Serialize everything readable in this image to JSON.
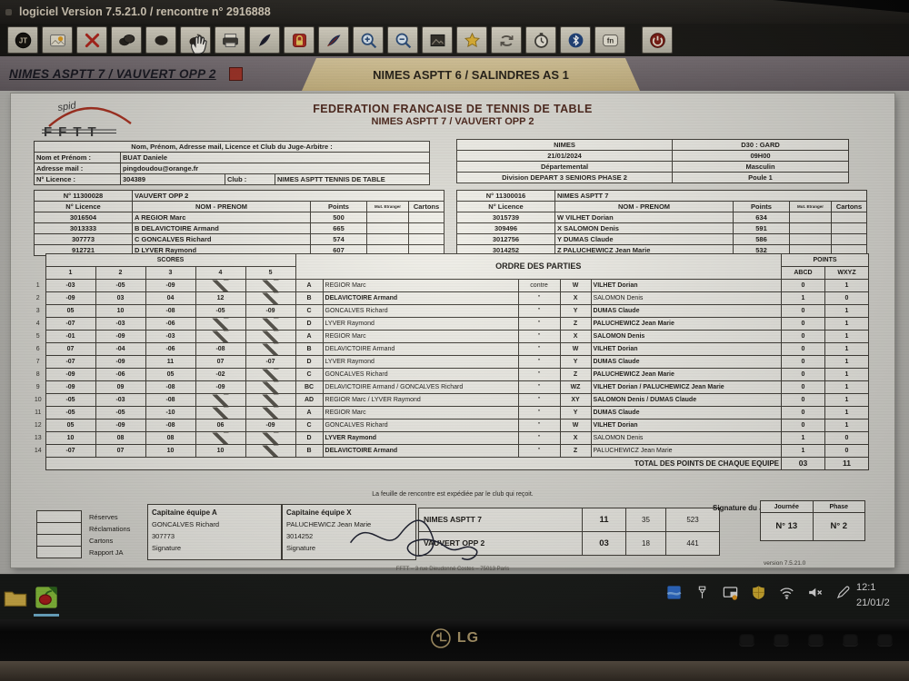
{
  "window": {
    "title": "logiciel Version 7.5.21.0  /  rencontre n° 2916888"
  },
  "toolbar": {
    "icons": [
      {
        "name": "app-logo-icon",
        "sym": "applogo"
      },
      {
        "name": "card-icon",
        "sym": "card"
      },
      {
        "name": "delete-icon",
        "sym": "xmark"
      },
      {
        "name": "double-ball-icon",
        "sym": "balls"
      },
      {
        "name": "ball-icon",
        "sym": "ball"
      },
      {
        "name": "sync-ball-icon",
        "sym": "sync"
      },
      {
        "name": "print-icon",
        "sym": "printer"
      },
      {
        "name": "black-feather-icon",
        "sym": "feather"
      },
      {
        "name": "lock-icon",
        "sym": "lock"
      },
      {
        "name": "blue-feather-icon",
        "sym": "feather2"
      },
      {
        "name": "zoom-in-icon",
        "sym": "zoomin"
      },
      {
        "name": "zoom-out-icon",
        "sym": "zoomout"
      },
      {
        "name": "image-icon",
        "sym": "image"
      },
      {
        "name": "star-icon",
        "sym": "star"
      },
      {
        "name": "refresh-icon",
        "sym": "refresh"
      },
      {
        "name": "timer-icon",
        "sym": "clock"
      },
      {
        "name": "bluetooth-icon",
        "sym": "bluetooth"
      },
      {
        "name": "fn-icon",
        "sym": "fn"
      },
      {
        "name": "power-icon",
        "sym": "power",
        "gap": true
      }
    ]
  },
  "tabs": [
    {
      "label": "NIMES ASPTT 7 / VAUVERT OPP 2",
      "active": true
    },
    {
      "label": "NIMES ASPTT 6 / SALINDRES AS 1",
      "active": false
    }
  ],
  "sheet": {
    "logo": {
      "spid": "spid",
      "fftt": "FFTT"
    },
    "title1": "FEDERATION FRANCAISE DE TENNIS DE TABLE",
    "title2": "NIMES ASPTT 7  /  VAUVERT OPP 2",
    "judge": {
      "header": "Nom, Prénom, Adresse mail, Licence et Club du Juge-Arbitre :",
      "name_label": "Nom et Prénom :",
      "name": "BUAT  Daniele",
      "mail_label": "Adresse mail :",
      "mail": "pingdoudou@orange.fr",
      "licence_label": "N° Licence :",
      "licence": "304389",
      "club_label": "Club :",
      "club": "NIMES ASPTT TENNIS DE TABLE"
    },
    "info": {
      "rows": [
        [
          "NIMES",
          "D30 : GARD"
        ],
        [
          "21/01/2024",
          "09H00"
        ],
        [
          "Départemental",
          "Masculin"
        ],
        [
          "Division  DEPART 3 SENIORS PHASE 2",
          "Poule 1"
        ]
      ]
    },
    "team_cols": {
      "licence": "N° Licence",
      "name": "NOM - PRENOM",
      "points": "Points",
      "mut": "Mut. Etranger",
      "cartons": "Cartons"
    },
    "teams": [
      {
        "club_no": "N° 11300028",
        "club": "VAUVERT OPP 2",
        "players": [
          {
            "lic": "3016504",
            "tag": "A",
            "name": "REGIOR Marc",
            "pts": "500"
          },
          {
            "lic": "3013333",
            "tag": "B",
            "name": "DELAVICTOIRE Armand",
            "pts": "665"
          },
          {
            "lic": "307773",
            "tag": "C",
            "name": "GONCALVES Richard",
            "pts": "574"
          },
          {
            "lic": "912721",
            "tag": "D",
            "name": "LYVER Raymond",
            "pts": "607"
          }
        ]
      },
      {
        "club_no": "N° 11300016",
        "club": "NIMES ASPTT 7",
        "players": [
          {
            "lic": "3015739",
            "tag": "W",
            "name": "VILHET Dorian",
            "pts": "634"
          },
          {
            "lic": "309496",
            "tag": "X",
            "name": "SALOMON Denis",
            "pts": "591"
          },
          {
            "lic": "3012756",
            "tag": "Y",
            "name": "DUMAS Claude",
            "pts": "586"
          },
          {
            "lic": "3014252",
            "tag": "Z",
            "name": "PALUCHEWICZ Jean Marie",
            "pts": "532"
          }
        ]
      }
    ],
    "match": {
      "scores_header": "SCORES",
      "score_cols": [
        "1",
        "2",
        "3",
        "4",
        "5"
      ],
      "order_header": "ORDRE DES PARTIES",
      "points_header": "POINTS",
      "points_cols": [
        "ABCD",
        "WXYZ"
      ],
      "contre_label": "contre",
      "ditto": "\"",
      "rows": [
        {
          "n": "1",
          "s": [
            "-03",
            "-05",
            "-09",
            "",
            ""
          ],
          "la": "A",
          "pa": "REGIOR Marc",
          "lx": "W",
          "px": "VILHET Dorian",
          "pta": "0",
          "ptx": "1",
          "w": "x"
        },
        {
          "n": "2",
          "s": [
            "-09",
            "03",
            "04",
            "12",
            ""
          ],
          "la": "B",
          "pa": "DELAVICTOIRE Armand",
          "lx": "X",
          "px": "SALOMON Denis",
          "pta": "1",
          "ptx": "0",
          "w": "a"
        },
        {
          "n": "3",
          "s": [
            "05",
            "10",
            "-08",
            "-05",
            "-09"
          ],
          "la": "C",
          "pa": "GONCALVES Richard",
          "lx": "Y",
          "px": "DUMAS Claude",
          "pta": "0",
          "ptx": "1",
          "w": "x"
        },
        {
          "n": "4",
          "s": [
            "-07",
            "-03",
            "-06",
            "",
            ""
          ],
          "la": "D",
          "pa": "LYVER Raymond",
          "lx": "Z",
          "px": "PALUCHEWICZ Jean Marie",
          "pta": "0",
          "ptx": "1",
          "w": "x"
        },
        {
          "n": "5",
          "s": [
            "-01",
            "-09",
            "-03",
            "",
            ""
          ],
          "la": "A",
          "pa": "REGIOR Marc",
          "lx": "X",
          "px": "SALOMON Denis",
          "pta": "0",
          "ptx": "1",
          "w": "x"
        },
        {
          "n": "6",
          "s": [
            "07",
            "-04",
            "-06",
            "-08",
            ""
          ],
          "la": "B",
          "pa": "DELAVICTOIRE Armand",
          "lx": "W",
          "px": "VILHET Dorian",
          "pta": "0",
          "ptx": "1",
          "w": "x"
        },
        {
          "n": "7",
          "s": [
            "-07",
            "-09",
            "11",
            "07",
            "-07"
          ],
          "la": "D",
          "pa": "LYVER Raymond",
          "lx": "Y",
          "px": "DUMAS Claude",
          "pta": "0",
          "ptx": "1",
          "w": "x"
        },
        {
          "n": "8",
          "s": [
            "-09",
            "-06",
            "05",
            "-02",
            ""
          ],
          "la": "C",
          "pa": "GONCALVES Richard",
          "lx": "Z",
          "px": "PALUCHEWICZ Jean Marie",
          "pta": "0",
          "ptx": "1",
          "w": "x"
        },
        {
          "n": "9",
          "s": [
            "-09",
            "09",
            "-08",
            "-09",
            ""
          ],
          "la": "BC",
          "pa": "DELAVICTOIRE Armand / GONCALVES Richard",
          "lx": "WZ",
          "px": "VILHET Dorian /  PALUCHEWICZ Jean Marie",
          "pta": "0",
          "ptx": "1",
          "w": "x"
        },
        {
          "n": "10",
          "s": [
            "-05",
            "-03",
            "-08",
            "",
            ""
          ],
          "la": "AD",
          "pa": "REGIOR Marc / LYVER Raymond",
          "lx": "XY",
          "px": "SALOMON Denis / DUMAS Claude",
          "pta": "0",
          "ptx": "1",
          "w": "x"
        },
        {
          "n": "11",
          "s": [
            "-05",
            "-05",
            "-10",
            "",
            ""
          ],
          "la": "A",
          "pa": "REGIOR Marc",
          "lx": "Y",
          "px": "DUMAS Claude",
          "pta": "0",
          "ptx": "1",
          "w": "x"
        },
        {
          "n": "12",
          "s": [
            "05",
            "-09",
            "-08",
            "06",
            "-09"
          ],
          "la": "C",
          "pa": "GONCALVES Richard",
          "lx": "W",
          "px": "VILHET Dorian",
          "pta": "0",
          "ptx": "1",
          "w": "x"
        },
        {
          "n": "13",
          "s": [
            "10",
            "08",
            "08",
            "",
            ""
          ],
          "la": "D",
          "pa": "LYVER Raymond",
          "lx": "X",
          "px": "SALOMON Denis",
          "pta": "1",
          "ptx": "0",
          "w": "a"
        },
        {
          "n": "14",
          "s": [
            "-07",
            "07",
            "10",
            "10",
            ""
          ],
          "la": "B",
          "pa": "DELAVICTOIRE Armand",
          "lx": "Z",
          "px": "PALUCHEWICZ Jean Marie",
          "pta": "1",
          "ptx": "0",
          "w": "a"
        }
      ],
      "total_label": "TOTAL DES POINTS DE CHAQUE EQUIPE",
      "total": [
        "03",
        "11"
      ]
    },
    "note": "La feuille de rencontre est expédiée par le club qui reçoit.",
    "checks": {
      "items": [
        "Réserves",
        "Réclamations",
        "Cartons",
        "Rapport JA"
      ]
    },
    "captains": [
      {
        "title": "Capitaine équipe A",
        "name": "GONCALVES Richard",
        "lic": "307773",
        "sig": "Signature"
      },
      {
        "title": "Capitaine équipe X",
        "name": "PALUCHEWICZ Jean Marie",
        "lic": "3014252",
        "sig": "Signature"
      }
    ],
    "results": {
      "rows": [
        {
          "team": "NIMES ASPTT 7",
          "v1": "11",
          "v2": "35",
          "v3": "523"
        },
        {
          "team": "VAUVERT OPP 2",
          "v1": "03",
          "v2": "18",
          "v3": "441"
        }
      ]
    },
    "judge_sig_label": "Signature du Juge Arbitre",
    "round": {
      "col1": "Journée",
      "col2": "Phase",
      "val1": "N° 13",
      "val2": "N° 2"
    },
    "version": "version 7.5.21.0",
    "address": "FFTT – 3 rue Dieudonné Costes – 75013 Paris"
  },
  "taskbar": {
    "time": "12:1",
    "date": "21/01/2",
    "left_icons": [
      {
        "name": "folder-icon",
        "sym": "folder"
      },
      {
        "name": "girpe-app-icon",
        "sym": "girpe",
        "active": true
      }
    ],
    "tray_icons": [
      {
        "name": "app-tray-icon",
        "sym": "bluesq"
      },
      {
        "name": "usb-icon",
        "sym": "usb"
      },
      {
        "name": "cast-icon",
        "sym": "cast"
      },
      {
        "name": "security-shield-icon",
        "sym": "shield"
      },
      {
        "name": "wifi-icon",
        "sym": "wifi"
      },
      {
        "name": "volume-muted-icon",
        "sym": "mute"
      },
      {
        "name": "pen-icon",
        "sym": "pen"
      }
    ]
  },
  "monitor": {
    "brand": "LG"
  },
  "colors": {
    "accent_red": "#9c2f24",
    "tab_tan": "#c9b57f",
    "paper": "#efeee8",
    "lg_gold": "#99875f"
  }
}
